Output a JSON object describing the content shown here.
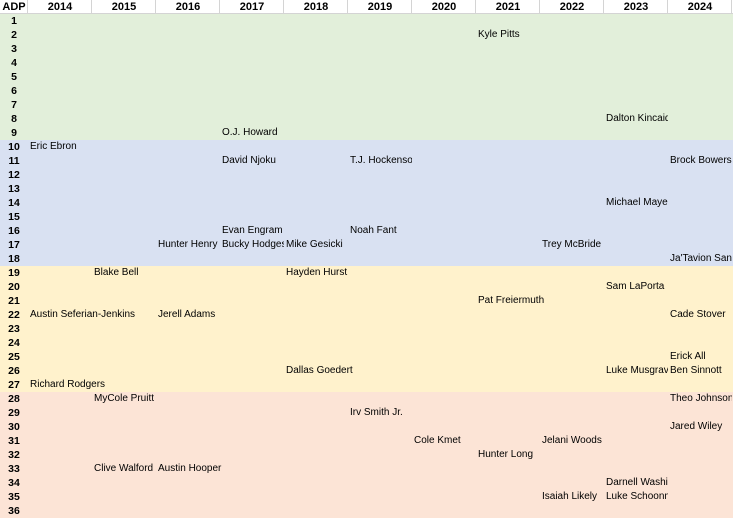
{
  "header": {
    "adp_label": "ADP",
    "years": [
      "2014",
      "2015",
      "2016",
      "2017",
      "2018",
      "2019",
      "2020",
      "2021",
      "2022",
      "2023",
      "2024"
    ]
  },
  "ranks": [
    1,
    2,
    3,
    4,
    5,
    6,
    7,
    8,
    9,
    10,
    11,
    12,
    13,
    14,
    15,
    16,
    17,
    18,
    19,
    20,
    21,
    22,
    23,
    24,
    25,
    26,
    27,
    28,
    29,
    30,
    31,
    32,
    33,
    34,
    35,
    36
  ],
  "tiers": [
    {
      "from": 1,
      "to": 9,
      "color": "#e2efda"
    },
    {
      "from": 10,
      "to": 18,
      "color": "#d9e1f2"
    },
    {
      "from": 19,
      "to": 27,
      "color": "#fff2cc"
    },
    {
      "from": 28,
      "to": 36,
      "color": "#fce4d6"
    }
  ],
  "players": [
    {
      "rank": 2,
      "year": "2021",
      "name": "Kyle Pitts"
    },
    {
      "rank": 8,
      "year": "2023",
      "name": "Dalton Kincaid"
    },
    {
      "rank": 9,
      "year": "2017",
      "name": "O.J. Howard"
    },
    {
      "rank": 10,
      "year": "2014",
      "name": "Eric Ebron"
    },
    {
      "rank": 11,
      "year": "2017",
      "name": "David Njoku"
    },
    {
      "rank": 11,
      "year": "2019",
      "name": "T.J. Hockenson"
    },
    {
      "rank": 11,
      "year": "2024",
      "name": "Brock Bowers"
    },
    {
      "rank": 14,
      "year": "2023",
      "name": "Michael Mayer"
    },
    {
      "rank": 16,
      "year": "2017",
      "name": "Evan Engram"
    },
    {
      "rank": 16,
      "year": "2019",
      "name": "Noah Fant"
    },
    {
      "rank": 17,
      "year": "2016",
      "name": "Hunter Henry"
    },
    {
      "rank": 17,
      "year": "2017",
      "name": "Bucky Hodges"
    },
    {
      "rank": 17,
      "year": "2018",
      "name": "Mike Gesicki"
    },
    {
      "rank": 17,
      "year": "2022",
      "name": "Trey McBride"
    },
    {
      "rank": 18,
      "year": "2024",
      "name": "Ja'Tavion Sanders"
    },
    {
      "rank": 19,
      "year": "2015",
      "name": "Blake Bell"
    },
    {
      "rank": 19,
      "year": "2018",
      "name": "Hayden Hurst"
    },
    {
      "rank": 20,
      "year": "2023",
      "name": "Sam LaPorta"
    },
    {
      "rank": 21,
      "year": "2021",
      "name": "Pat Freiermuth",
      "wide": true
    },
    {
      "rank": 22,
      "year": "2014",
      "name": "Austin Seferian-Jenkins",
      "wide": true
    },
    {
      "rank": 22,
      "year": "2016",
      "name": "Jerell Adams",
      "wide": true
    },
    {
      "rank": 22,
      "year": "2024",
      "name": "Cade Stover"
    },
    {
      "rank": 25,
      "year": "2024",
      "name": "Erick All"
    },
    {
      "rank": 26,
      "year": "2018",
      "name": "Dallas Goedert",
      "wide": true
    },
    {
      "rank": 26,
      "year": "2023",
      "name": "Luke Musgrave"
    },
    {
      "rank": 26,
      "year": "2024",
      "name": "Ben Sinnott"
    },
    {
      "rank": 27,
      "year": "2014",
      "name": "Richard Rodgers",
      "wide": true
    },
    {
      "rank": 28,
      "year": "2015",
      "name": "MyCole Pruitt"
    },
    {
      "rank": 28,
      "year": "2024",
      "name": "Theo Johnson"
    },
    {
      "rank": 29,
      "year": "2019",
      "name": "Irv Smith Jr."
    },
    {
      "rank": 30,
      "year": "2024",
      "name": "Jared Wiley"
    },
    {
      "rank": 31,
      "year": "2020",
      "name": "Cole Kmet"
    },
    {
      "rank": 31,
      "year": "2022",
      "name": "Jelani Woods",
      "wide": true
    },
    {
      "rank": 32,
      "year": "2021",
      "name": "Hunter Long"
    },
    {
      "rank": 33,
      "year": "2015",
      "name": "Clive Walford"
    },
    {
      "rank": 33,
      "year": "2016",
      "name": "Austin Hooper",
      "wide": true
    },
    {
      "rank": 34,
      "year": "2023",
      "name": "Darnell Washington"
    },
    {
      "rank": 35,
      "year": "2022",
      "name": "Isaiah Likely"
    },
    {
      "rank": 35,
      "year": "2023",
      "name": "Luke Schoonmaker"
    }
  ]
}
